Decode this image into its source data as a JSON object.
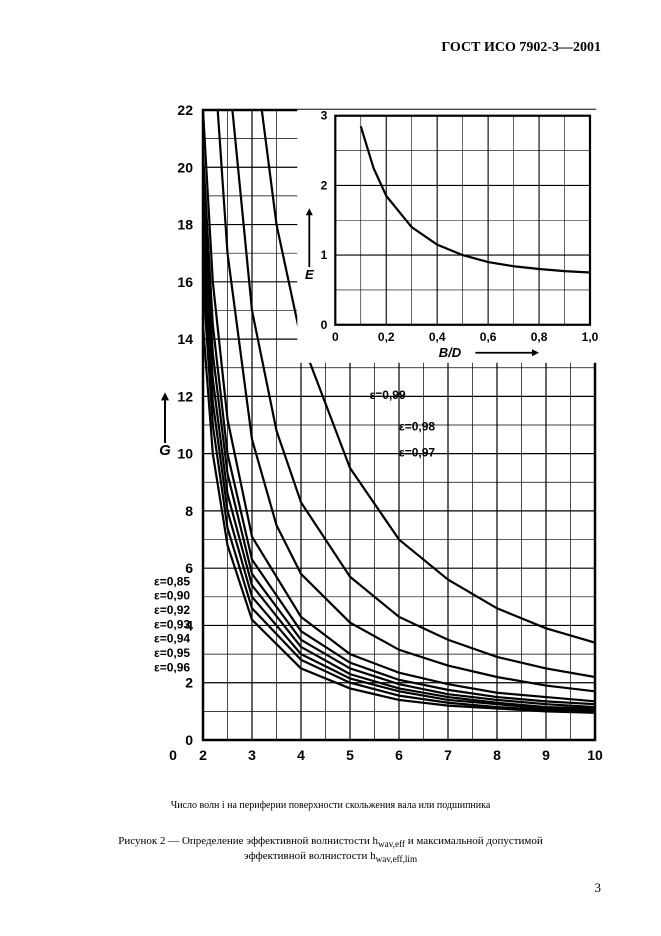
{
  "header": "ГОСТ ИСО 7902-3—2001",
  "page_number": "3",
  "caption_axis": "Число волн i на периферии поверхности скольжения вала или подшипника",
  "caption_fig_a": "Рисунок 2 — Определение эффективной волнистости h",
  "caption_fig_b": " и максимальной допустимой",
  "caption_fig_c": "эффективной волнистости h",
  "sub1": "wav,eff",
  "sub2": "wav,eff,lim",
  "main_chart": {
    "type": "line",
    "xlim": [
      0,
      10
    ],
    "ylim": [
      0,
      22
    ],
    "xtick_labels": [
      "0",
      "2",
      "3",
      "4",
      "5",
      "6",
      "7",
      "8",
      "9",
      "10"
    ],
    "xtick_pos": [
      0,
      2,
      3,
      4,
      5,
      6,
      7,
      8,
      9,
      10
    ],
    "ytick_labels": [
      "0",
      "2",
      "4",
      "6",
      "8",
      "10",
      "12",
      "14",
      "16",
      "18",
      "20",
      "22"
    ],
    "ytick_pos": [
      0,
      2,
      4,
      6,
      8,
      10,
      12,
      14,
      16,
      18,
      20,
      22
    ],
    "ylabel": "G",
    "grid_color": "#000000",
    "line_color": "#000000",
    "line_width": 2.2,
    "tick_fontsize": 14,
    "label_fontsize": 15,
    "series": [
      {
        "label": "ε=0,85",
        "label_pos": [
          1.0,
          5.4
        ],
        "pts": [
          [
            2,
            14.5
          ],
          [
            2.2,
            10.0
          ],
          [
            2.5,
            6.8
          ],
          [
            3,
            4.2
          ],
          [
            4,
            2.5
          ],
          [
            5,
            1.8
          ],
          [
            6,
            1.4
          ],
          [
            7,
            1.2
          ],
          [
            8,
            1.1
          ],
          [
            9,
            1.0
          ],
          [
            10,
            0.95
          ]
        ]
      },
      {
        "label": "ε=0,90",
        "label_pos": [
          1.0,
          4.9
        ],
        "pts": [
          [
            2,
            16.0
          ],
          [
            2.2,
            11.0
          ],
          [
            2.5,
            7.4
          ],
          [
            3,
            4.6
          ],
          [
            4,
            2.8
          ],
          [
            5,
            2.0
          ],
          [
            6,
            1.55
          ],
          [
            7,
            1.3
          ],
          [
            8,
            1.15
          ],
          [
            9,
            1.05
          ],
          [
            10,
            1.0
          ]
        ]
      },
      {
        "label": "ε=0,92",
        "label_pos": [
          1.0,
          4.4
        ],
        "pts": [
          [
            2,
            17.0
          ],
          [
            2.2,
            11.8
          ],
          [
            2.5,
            8.0
          ],
          [
            3,
            5.0
          ],
          [
            4,
            3.0
          ],
          [
            5,
            2.15
          ],
          [
            6,
            1.7
          ],
          [
            7,
            1.4
          ],
          [
            8,
            1.25
          ],
          [
            9,
            1.1
          ],
          [
            10,
            1.05
          ]
        ]
      },
      {
        "label": "ε=0,93",
        "label_pos": [
          1.0,
          3.9
        ],
        "pts": [
          [
            2,
            18.0
          ],
          [
            2.2,
            12.6
          ],
          [
            2.5,
            8.6
          ],
          [
            3,
            5.4
          ],
          [
            4,
            3.25
          ],
          [
            5,
            2.3
          ],
          [
            6,
            1.8
          ],
          [
            7,
            1.5
          ],
          [
            8,
            1.3
          ],
          [
            9,
            1.15
          ],
          [
            10,
            1.1
          ]
        ]
      },
      {
        "label": "ε=0,94",
        "label_pos": [
          1.0,
          3.4
        ],
        "pts": [
          [
            2,
            19.2
          ],
          [
            2.2,
            13.5
          ],
          [
            2.5,
            9.3
          ],
          [
            3,
            5.8
          ],
          [
            4,
            3.5
          ],
          [
            5,
            2.5
          ],
          [
            6,
            1.95
          ],
          [
            7,
            1.6
          ],
          [
            8,
            1.4
          ],
          [
            9,
            1.25
          ],
          [
            10,
            1.15
          ]
        ]
      },
      {
        "label": "ε=0,95",
        "label_pos": [
          1.0,
          2.9
        ],
        "pts": [
          [
            2,
            20.5
          ],
          [
            2.2,
            14.5
          ],
          [
            2.5,
            10.0
          ],
          [
            3,
            6.3
          ],
          [
            4,
            3.8
          ],
          [
            5,
            2.7
          ],
          [
            6,
            2.1
          ],
          [
            7,
            1.75
          ],
          [
            8,
            1.5
          ],
          [
            9,
            1.35
          ],
          [
            10,
            1.25
          ]
        ]
      },
      {
        "label": "ε=0,96",
        "label_pos": [
          1.0,
          2.4
        ],
        "pts": [
          [
            2,
            22.0
          ],
          [
            2.2,
            16.0
          ],
          [
            2.5,
            11.2
          ],
          [
            3,
            7.1
          ],
          [
            4,
            4.3
          ],
          [
            5,
            3.0
          ],
          [
            6,
            2.35
          ],
          [
            7,
            1.95
          ],
          [
            8,
            1.65
          ],
          [
            9,
            1.5
          ],
          [
            10,
            1.35
          ]
        ]
      },
      {
        "label": "ε=0,97",
        "label_pos": [
          6.0,
          9.9
        ],
        "pts": [
          [
            2.3,
            22.0
          ],
          [
            2.5,
            17.0
          ],
          [
            3,
            10.5
          ],
          [
            3.5,
            7.5
          ],
          [
            4,
            5.8
          ],
          [
            5,
            4.1
          ],
          [
            6,
            3.15
          ],
          [
            7,
            2.6
          ],
          [
            8,
            2.2
          ],
          [
            9,
            1.9
          ],
          [
            10,
            1.7
          ]
        ]
      },
      {
        "label": "ε=0,98",
        "label_pos": [
          6.0,
          10.8
        ],
        "pts": [
          [
            2.6,
            22.0
          ],
          [
            3,
            15.0
          ],
          [
            3.5,
            10.8
          ],
          [
            4,
            8.3
          ],
          [
            5,
            5.7
          ],
          [
            6,
            4.3
          ],
          [
            7,
            3.5
          ],
          [
            8,
            2.9
          ],
          [
            9,
            2.5
          ],
          [
            10,
            2.2
          ]
        ]
      },
      {
        "label": "ε=0,99",
        "label_pos": [
          5.4,
          11.9
        ],
        "pts": [
          [
            3.2,
            22.0
          ],
          [
            3.5,
            18.0
          ],
          [
            4,
            14.0
          ],
          [
            5,
            9.5
          ],
          [
            6,
            7.0
          ],
          [
            7,
            5.6
          ],
          [
            8,
            4.6
          ],
          [
            9,
            3.9
          ],
          [
            10,
            3.4
          ]
        ]
      }
    ]
  },
  "inset_chart": {
    "type": "line",
    "xlim": [
      0,
      1.0
    ],
    "ylim": [
      0,
      3
    ],
    "xtick_labels": [
      "0",
      "0,2",
      "0,4",
      "0,6",
      "0,8",
      "1,0"
    ],
    "xtick_pos": [
      0,
      0.2,
      0.4,
      0.6,
      0.8,
      1.0
    ],
    "ytick_labels": [
      "0",
      "1",
      "2",
      "3"
    ],
    "ytick_pos": [
      0,
      1,
      2,
      3
    ],
    "xlabel": "B/D",
    "ylabel": "E",
    "grid_color": "#000000",
    "line_color": "#000000",
    "line_width": 2.2,
    "pts": [
      [
        0.1,
        2.85
      ],
      [
        0.15,
        2.25
      ],
      [
        0.2,
        1.85
      ],
      [
        0.3,
        1.4
      ],
      [
        0.4,
        1.15
      ],
      [
        0.5,
        1.0
      ],
      [
        0.6,
        0.9
      ],
      [
        0.7,
        0.84
      ],
      [
        0.8,
        0.8
      ],
      [
        0.9,
        0.77
      ],
      [
        1.0,
        0.75
      ]
    ]
  }
}
